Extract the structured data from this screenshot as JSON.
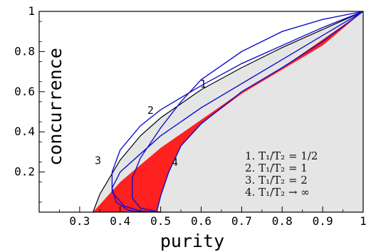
{
  "chart_data": {
    "type": "line",
    "xlabel": "purity",
    "ylabel": "concurrence",
    "xlim": [
      0.2,
      1.0
    ],
    "ylim": [
      0.0,
      1.0
    ],
    "x_ticks": [
      {
        "value": 0.3,
        "label": "0.3"
      },
      {
        "value": 0.4,
        "label": "0.4"
      },
      {
        "value": 0.5,
        "label": "0.5"
      },
      {
        "value": 0.6,
        "label": "0.6"
      },
      {
        "value": 0.7,
        "label": "0.7"
      },
      {
        "value": 0.8,
        "label": "0.8"
      },
      {
        "value": 0.9,
        "label": "0.9"
      },
      {
        "value": 1.0,
        "label": "1"
      }
    ],
    "y_ticks": [
      {
        "value": 0.2,
        "label": "0.2"
      },
      {
        "value": 0.4,
        "label": "0.4"
      },
      {
        "value": 0.6,
        "label": "0.6"
      },
      {
        "value": 0.8,
        "label": "0.8"
      },
      {
        "value": 1.0,
        "label": "1"
      }
    ],
    "colors": {
      "allowed_region": "#e5e5e5",
      "red_region": "#ff2020",
      "curves": "#1010cc",
      "boundary": "#000000"
    },
    "series": [
      {
        "name": "1",
        "curve_label": "1",
        "values": [
          [
            1.0,
            1.0
          ],
          [
            0.9,
            0.96
          ],
          [
            0.8,
            0.9
          ],
          [
            0.7,
            0.8
          ],
          [
            0.6,
            0.66
          ],
          [
            0.55,
            0.55
          ],
          [
            0.5,
            0.42
          ],
          [
            0.45,
            0.27
          ],
          [
            0.43,
            0.17
          ],
          [
            0.43,
            0.07
          ],
          [
            0.45,
            0.02
          ],
          [
            0.5,
            0.0
          ]
        ]
      },
      {
        "name": "2",
        "curve_label": "2",
        "values": [
          [
            1.0,
            1.0
          ],
          [
            0.9,
            0.92
          ],
          [
            0.8,
            0.83
          ],
          [
            0.7,
            0.74
          ],
          [
            0.6,
            0.63
          ],
          [
            0.5,
            0.51
          ],
          [
            0.45,
            0.43
          ],
          [
            0.4,
            0.31
          ],
          [
            0.38,
            0.2
          ],
          [
            0.38,
            0.1
          ],
          [
            0.41,
            0.03
          ],
          [
            0.45,
            0.005
          ],
          [
            0.5,
            0.0
          ]
        ]
      },
      {
        "name": "3",
        "curve_label": "3",
        "values": [
          [
            1.0,
            1.0
          ],
          [
            0.9,
            0.88
          ],
          [
            0.8,
            0.76
          ],
          [
            0.7,
            0.64
          ],
          [
            0.6,
            0.52
          ],
          [
            0.5,
            0.38
          ],
          [
            0.45,
            0.29
          ],
          [
            0.4,
            0.2
          ],
          [
            0.38,
            0.12
          ],
          [
            0.39,
            0.05
          ],
          [
            0.42,
            0.01
          ],
          [
            0.45,
            0.0
          ]
        ]
      },
      {
        "name": "4",
        "curve_label": "4",
        "values": [
          [
            1.0,
            1.0
          ],
          [
            0.9,
            0.85
          ],
          [
            0.8,
            0.72
          ],
          [
            0.7,
            0.6
          ],
          [
            0.6,
            0.44
          ],
          [
            0.55,
            0.33
          ],
          [
            0.52,
            0.2
          ],
          [
            0.5,
            0.08
          ],
          [
            0.49,
            0.0
          ]
        ]
      }
    ],
    "boundary_curve": [
      [
        0.333,
        0.0
      ],
      [
        0.35,
        0.09
      ],
      [
        0.4,
        0.26
      ],
      [
        0.45,
        0.38
      ],
      [
        0.5,
        0.47
      ],
      [
        0.6,
        0.61
      ],
      [
        0.7,
        0.72
      ],
      [
        0.8,
        0.82
      ],
      [
        0.9,
        0.91
      ],
      [
        1.0,
        1.0
      ]
    ],
    "red_region": {
      "upper": [
        [
          0.333,
          0.0
        ],
        [
          0.4,
          0.15
        ],
        [
          0.5,
          0.32
        ],
        [
          0.6,
          0.46
        ],
        [
          0.7,
          0.6
        ],
        [
          0.8,
          0.72
        ],
        [
          0.9,
          0.86
        ],
        [
          1.0,
          1.0
        ]
      ],
      "lower": [
        [
          1.0,
          1.0
        ],
        [
          0.9,
          0.83
        ],
        [
          0.8,
          0.71
        ],
        [
          0.7,
          0.59
        ],
        [
          0.6,
          0.44
        ],
        [
          0.55,
          0.33
        ],
        [
          0.52,
          0.2
        ],
        [
          0.5,
          0.08
        ],
        [
          0.49,
          0.0
        ]
      ]
    },
    "curve_labels": [
      {
        "text": "1",
        "x": 0.605,
        "y": 0.62
      },
      {
        "text": "2",
        "x": 0.475,
        "y": 0.49
      },
      {
        "text": "3",
        "x": 0.345,
        "y": 0.24
      },
      {
        "text": "4",
        "x": 0.535,
        "y": 0.23
      }
    ],
    "legend": {
      "placement": "bottom-right",
      "entries": [
        "1. T₁/T₂ = 1/2",
        "2. T₁/T₂ = 1",
        "3. T₁/T₂ = 2",
        "4. T₁/T₂ → ∞"
      ]
    }
  }
}
